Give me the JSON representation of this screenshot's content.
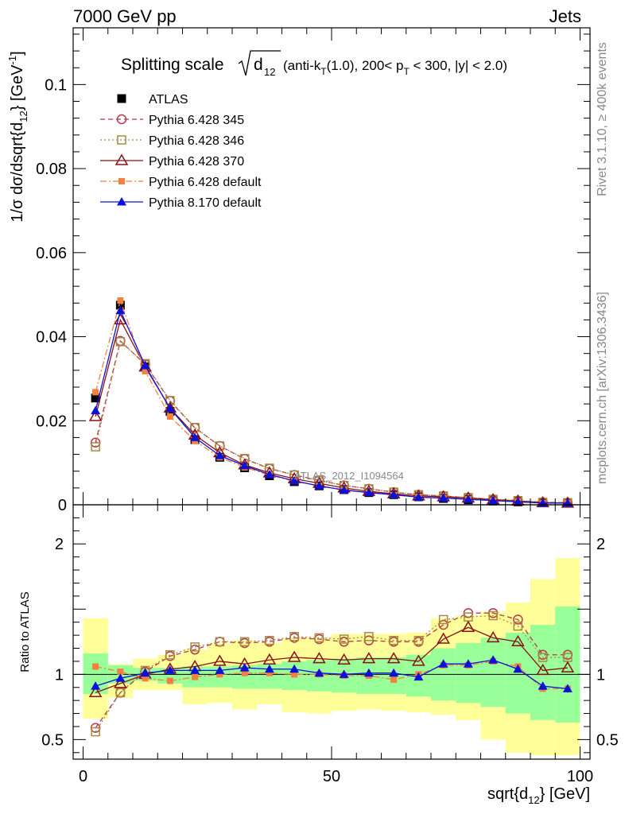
{
  "header": {
    "left": "7000 GeV pp",
    "right": "Jets"
  },
  "side_labels": {
    "rivet": "Rivet 3.1.10, ≥ 400k events",
    "mcplots": "mcplots.cern.ch [arXiv:1306.3436]"
  },
  "chart_data": [
    {
      "type": "line",
      "panel": "main",
      "title": "Splitting scale √d12 (anti-kT(1.0), 200< pT < 300, |y| < 2.0)",
      "title_parts": {
        "main": "Splitting scale",
        "radicand": "d",
        "radicand_sub": "12",
        "rest_1": "(anti-k",
        "rest_1_sub": "T",
        "rest_2": "(1.0), 200< p",
        "rest_2_sub": "T",
        "rest_3": " < 300, |y| < 2.0)"
      },
      "ylabel": "1/σ dσ/dsqrt{d12} [GeV-1]",
      "ylabel_parts": {
        "a": "1/σ dσ/dsqrt{d",
        "sub": "12",
        "b": "} [GeV",
        "sup": "-1",
        "c": "]"
      },
      "xlim": [
        -2,
        102
      ],
      "ylim": [
        0,
        0.1135
      ],
      "y_ticks": [
        0,
        0.02,
        0.04,
        0.06,
        0.08,
        0.1
      ],
      "y_tick_labels": [
        "0",
        "0.02",
        "0.04",
        "0.06",
        "0.08",
        "0.1"
      ],
      "annotation": "ATLAS_2012_I1094564",
      "legend_position": "top-left",
      "x": [
        2.5,
        7.5,
        12.5,
        17.5,
        22.5,
        27.5,
        32.5,
        37.5,
        42.5,
        47.5,
        52.5,
        57.5,
        62.5,
        67.5,
        72.5,
        77.5,
        82.5,
        87.5,
        92.5,
        97.5
      ],
      "series": [
        {
          "name": "ATLAS",
          "color": "#000000",
          "marker": "filled-square",
          "line": "none",
          "values": [
            0.0254,
            0.0475,
            0.0328,
            0.0222,
            0.0155,
            0.0113,
            0.0088,
            0.0069,
            0.0055,
            0.0045,
            0.0036,
            0.0029,
            0.0024,
            0.0019,
            0.0015,
            0.0012,
            0.0009,
            0.0007,
            0.0005,
            0.0004
          ],
          "errors": [
            0.0005,
            0.0008,
            0.0006,
            0.0004,
            0.0003,
            0.0002,
            0.0002,
            0.0002,
            0.0001,
            0.0001,
            0.0001,
            0.0001,
            0.0001,
            0.0001,
            0.0001,
            0.0001,
            0.0001,
            0.0001,
            0.0001,
            0.0001
          ]
        },
        {
          "name": "Pythia 6.428 345",
          "color": "#b5384f",
          "marker": "open-circle",
          "line": "dashed",
          "values": [
            0.0148,
            0.039,
            0.0334,
            0.0247,
            0.0183,
            0.014,
            0.0109,
            0.0086,
            0.0071,
            0.0058,
            0.0046,
            0.0038,
            0.003,
            0.0024,
            0.0021,
            0.0017,
            0.0013,
            0.001,
            0.0006,
            0.0005
          ]
        },
        {
          "name": "Pythia 6.428 346",
          "color": "#a68a43",
          "marker": "open-square",
          "line": "dotted",
          "values": [
            0.0138,
            0.0388,
            0.0336,
            0.0248,
            0.0184,
            0.014,
            0.011,
            0.0087,
            0.0071,
            0.0058,
            0.0046,
            0.0038,
            0.003,
            0.0024,
            0.0021,
            0.0017,
            0.0013,
            0.001,
            0.0006,
            0.0005
          ]
        },
        {
          "name": "Pythia 6.428 370",
          "color": "#8b0f12",
          "marker": "open-triangle",
          "line": "solid",
          "values": [
            0.021,
            0.044,
            0.0328,
            0.023,
            0.0166,
            0.0124,
            0.0095,
            0.0076,
            0.0062,
            0.0051,
            0.004,
            0.0032,
            0.0026,
            0.0021,
            0.0019,
            0.0016,
            0.0012,
            0.0009,
            0.0005,
            0.0004
          ]
        },
        {
          "name": "Pythia 6.428 default",
          "color": "#f47f3e",
          "marker": "filled-square-small",
          "line": "dashdot",
          "values": [
            0.0268,
            0.0486,
            0.0318,
            0.021,
            0.0152,
            0.0113,
            0.0089,
            0.0071,
            0.0056,
            0.0045,
            0.0036,
            0.0029,
            0.0023,
            0.0019,
            0.0016,
            0.0013,
            0.001,
            0.0008,
            0.0004,
            0.0004
          ]
        },
        {
          "name": "Pythia 8.170 default",
          "color": "#0a12d8",
          "marker": "filled-triangle",
          "line": "solid",
          "values": [
            0.0224,
            0.0462,
            0.0331,
            0.0229,
            0.016,
            0.0117,
            0.0093,
            0.0072,
            0.0057,
            0.0045,
            0.0035,
            0.0029,
            0.0024,
            0.0018,
            0.0016,
            0.0013,
            0.001,
            0.0007,
            0.0004,
            0.0004
          ],
          "errors": [
            0.0003,
            0.0005,
            0.0004,
            0.0003,
            0.0002,
            0.0002,
            0.0002,
            0.0001,
            0.0001,
            0.0001,
            0.0001,
            0.0001,
            0.0001,
            0.0001,
            0.0001,
            0.0001,
            0.0001,
            0.0001,
            0.0001,
            0.0001
          ]
        }
      ]
    },
    {
      "type": "line",
      "panel": "ratio",
      "ylabel": "Ratio to ATLAS",
      "xlabel": "sqrt{d12} [GeV]",
      "xlabel_parts": {
        "a": "sqrt{d",
        "sub": "12",
        "b": "} [GeV]"
      },
      "xlim": [
        -2,
        102
      ],
      "ylim": [
        0.35,
        2.3
      ],
      "x_ticks": [
        0,
        50,
        100
      ],
      "x_tick_labels": [
        "0",
        "50",
        "100"
      ],
      "y_ticks": [
        0.5,
        1,
        2
      ],
      "y_tick_labels": [
        "0.5",
        "1",
        "2"
      ],
      "x": [
        2.5,
        7.5,
        12.5,
        17.5,
        22.5,
        27.5,
        32.5,
        37.5,
        42.5,
        47.5,
        52.5,
        57.5,
        62.5,
        67.5,
        72.5,
        77.5,
        82.5,
        87.5,
        92.5,
        97.5
      ],
      "bands": {
        "bins": [
          0,
          5,
          10,
          15,
          20,
          25,
          30,
          35,
          40,
          45,
          50,
          55,
          60,
          65,
          70,
          75,
          80,
          85,
          90,
          95,
          100
        ],
        "inner": {
          "color": "#99ff99",
          "low": [
            0.85,
            0.93,
            0.95,
            0.93,
            0.9,
            0.9,
            0.89,
            0.89,
            0.88,
            0.87,
            0.86,
            0.85,
            0.85,
            0.83,
            0.8,
            0.78,
            0.75,
            0.7,
            0.65,
            0.63
          ],
          "high": [
            1.16,
            1.07,
            1.05,
            1.05,
            1.06,
            1.06,
            1.07,
            1.08,
            1.1,
            1.11,
            1.12,
            1.13,
            1.13,
            1.15,
            1.2,
            1.24,
            1.28,
            1.32,
            1.38,
            1.52
          ]
        },
        "outer": {
          "color": "#ffff99",
          "low": [
            0.66,
            0.82,
            0.88,
            0.88,
            0.77,
            0.78,
            0.73,
            0.77,
            0.71,
            0.7,
            0.72,
            0.73,
            0.72,
            0.71,
            0.69,
            0.65,
            0.5,
            0.4,
            0.38,
            0.38
          ],
          "high": [
            1.43,
            1.08,
            1.12,
            1.15,
            1.19,
            1.24,
            1.26,
            1.24,
            1.28,
            1.28,
            1.31,
            1.31,
            1.31,
            1.32,
            1.43,
            1.45,
            1.48,
            1.55,
            1.73,
            1.89
          ]
        }
      },
      "reference_line": 1,
      "series": [
        {
          "name": "Pythia 6.428 345",
          "color": "#b5384f",
          "marker": "open-circle",
          "line": "dashed",
          "values": [
            0.59,
            0.86,
            1.02,
            1.14,
            1.19,
            1.25,
            1.24,
            1.25,
            1.28,
            1.27,
            1.25,
            1.26,
            1.25,
            1.25,
            1.38,
            1.47,
            1.47,
            1.42,
            1.15,
            1.15
          ]
        },
        {
          "name": "Pythia 6.428 346",
          "color": "#a68a43",
          "marker": "open-square",
          "line": "dotted",
          "values": [
            0.56,
            0.86,
            1.03,
            1.15,
            1.21,
            1.25,
            1.25,
            1.26,
            1.29,
            1.28,
            1.27,
            1.29,
            1.26,
            1.26,
            1.42,
            1.44,
            1.45,
            1.37,
            1.13,
            1.13
          ]
        },
        {
          "name": "Pythia 6.428 370",
          "color": "#8b0f12",
          "marker": "open-triangle",
          "line": "solid",
          "values": [
            0.86,
            0.93,
            1.0,
            1.04,
            1.06,
            1.1,
            1.08,
            1.11,
            1.13,
            1.12,
            1.11,
            1.12,
            1.12,
            1.1,
            1.27,
            1.36,
            1.28,
            1.25,
            1.03,
            1.05
          ]
        },
        {
          "name": "Pythia 6.428 default",
          "color": "#f47f3e",
          "marker": "filled-square-small",
          "line": "dashdot",
          "values": [
            1.06,
            1.02,
            0.97,
            0.95,
            0.98,
            1.0,
            1.01,
            1.01,
            1.0,
            1.0,
            0.99,
            0.99,
            0.96,
            1.0,
            1.07,
            1.07,
            1.1,
            1.06,
            0.89,
            0.89
          ]
        },
        {
          "name": "Pythia 8.170 default",
          "color": "#0a12d8",
          "marker": "filled-triangle",
          "line": "solid",
          "values": [
            0.91,
            0.97,
            1.01,
            1.03,
            1.03,
            1.03,
            1.05,
            1.04,
            1.04,
            1.01,
            1.0,
            1.01,
            1.01,
            0.98,
            1.08,
            1.08,
            1.11,
            1.04,
            0.91,
            0.89
          ],
          "errors": [
            0.01,
            0.01,
            0.01,
            0.01,
            0.01,
            0.01,
            0.01,
            0.01,
            0.01,
            0.01,
            0.01,
            0.01,
            0.01,
            0.01,
            0.02,
            0.02,
            0.02,
            0.02,
            0.03,
            0.03
          ]
        }
      ]
    }
  ]
}
